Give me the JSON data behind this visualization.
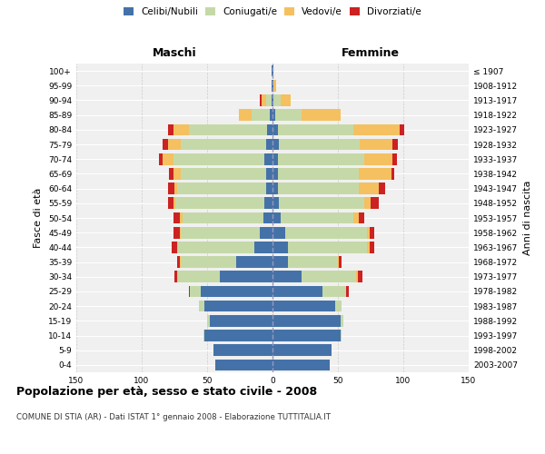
{
  "age_groups": [
    "0-4",
    "5-9",
    "10-14",
    "15-19",
    "20-24",
    "25-29",
    "30-34",
    "35-39",
    "40-44",
    "45-49",
    "50-54",
    "55-59",
    "60-64",
    "65-69",
    "70-74",
    "75-79",
    "80-84",
    "85-89",
    "90-94",
    "95-99",
    "100+"
  ],
  "birth_years": [
    "2003-2007",
    "1998-2002",
    "1993-1997",
    "1988-1992",
    "1983-1987",
    "1978-1982",
    "1973-1977",
    "1968-1972",
    "1963-1967",
    "1958-1962",
    "1953-1957",
    "1948-1952",
    "1943-1947",
    "1938-1942",
    "1933-1937",
    "1928-1932",
    "1923-1927",
    "1918-1922",
    "1913-1917",
    "1908-1912",
    "≤ 1907"
  ],
  "colors": {
    "celibi": "#4472a8",
    "coniugati": "#c5d9a8",
    "vedovi": "#f5c060",
    "divorziati": "#cc2222"
  },
  "maschi": {
    "celibi": [
      44,
      45,
      52,
      48,
      52,
      55,
      40,
      28,
      14,
      10,
      7,
      6,
      5,
      5,
      6,
      5,
      4,
      2,
      1,
      1,
      1
    ],
    "coniugati": [
      0,
      0,
      1,
      2,
      4,
      8,
      32,
      42,
      58,
      60,
      62,
      68,
      68,
      65,
      70,
      65,
      60,
      14,
      4,
      0,
      0
    ],
    "vedovi": [
      0,
      0,
      0,
      0,
      0,
      0,
      1,
      1,
      1,
      1,
      2,
      2,
      2,
      6,
      8,
      10,
      12,
      10,
      3,
      0,
      0
    ],
    "divorziati": [
      0,
      0,
      0,
      0,
      0,
      1,
      2,
      2,
      4,
      5,
      5,
      4,
      5,
      3,
      3,
      4,
      4,
      0,
      2,
      0,
      0
    ]
  },
  "femmine": {
    "nubili": [
      44,
      45,
      52,
      52,
      48,
      38,
      22,
      12,
      12,
      10,
      6,
      5,
      4,
      4,
      4,
      5,
      4,
      2,
      1,
      1,
      1
    ],
    "coniugate": [
      0,
      0,
      1,
      2,
      5,
      18,
      42,
      38,
      60,
      62,
      56,
      65,
      62,
      62,
      66,
      62,
      58,
      20,
      5,
      0,
      0
    ],
    "vedove": [
      0,
      0,
      0,
      0,
      0,
      0,
      1,
      1,
      2,
      2,
      4,
      5,
      15,
      25,
      22,
      25,
      35,
      30,
      8,
      2,
      0
    ],
    "divorziate": [
      0,
      0,
      0,
      0,
      0,
      2,
      4,
      2,
      4,
      4,
      4,
      6,
      5,
      2,
      3,
      4,
      4,
      0,
      0,
      0,
      0
    ]
  },
  "xlim": 150,
  "title": "Popolazione per età, sesso e stato civile - 2008",
  "subtitle": "COMUNE DI STIA (AR) - Dati ISTAT 1° gennaio 2008 - Elaborazione TUTTITALIA.IT",
  "ylabel_left": "Fasce di età",
  "ylabel_right": "Anni di nascita",
  "xlabel_left": "Maschi",
  "xlabel_right": "Femmine"
}
